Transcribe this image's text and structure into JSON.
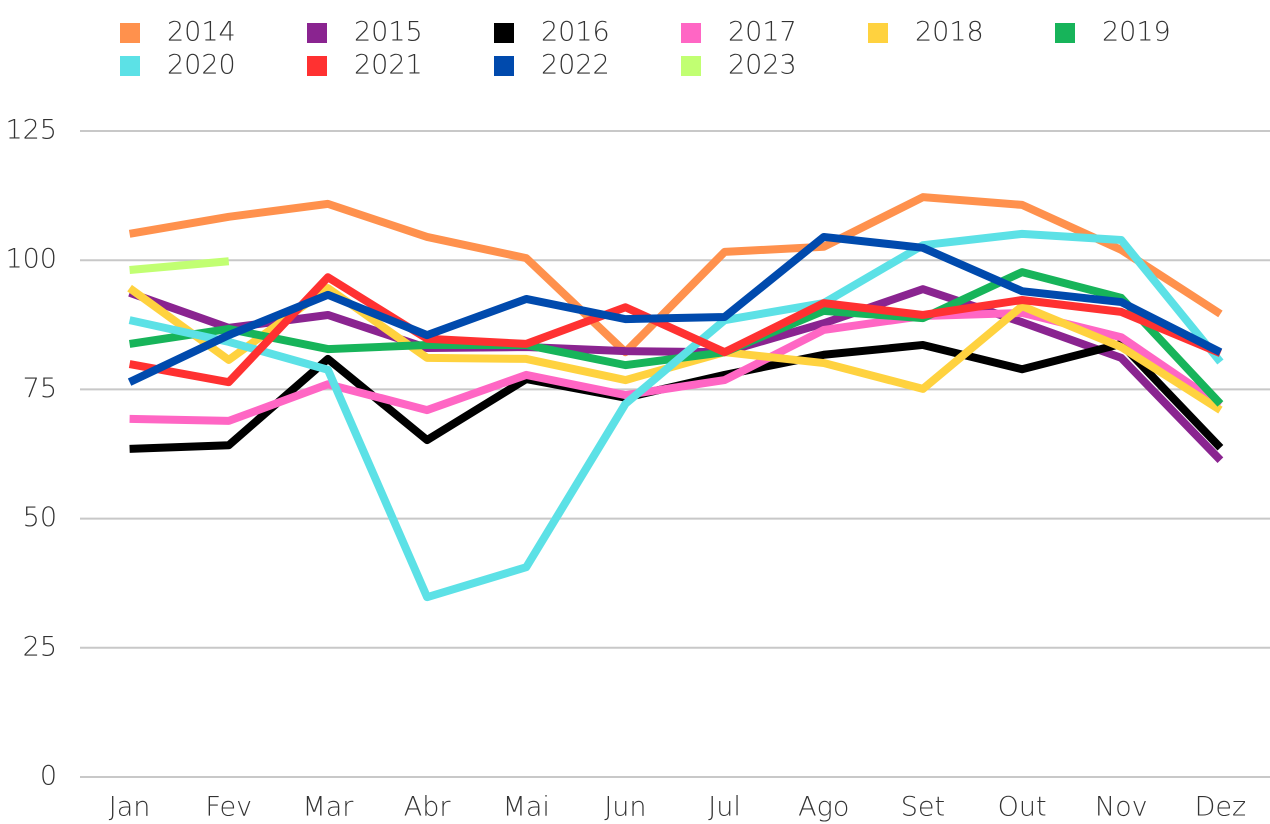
{
  "chart_data": {
    "type": "line",
    "categories": [
      "Jan",
      "Fev",
      "Mar",
      "Abr",
      "Mai",
      "Jun",
      "Jul",
      "Ago",
      "Set",
      "Out",
      "Nov",
      "Dez"
    ],
    "ylim": [
      0,
      125
    ],
    "yticks": [
      0,
      25,
      50,
      75,
      100,
      125
    ],
    "grid": true,
    "series": [
      {
        "name": "2014",
        "color": "#ff914d",
        "values": [
          105.1,
          108.4,
          110.9,
          104.5,
          100.4,
          82.2,
          101.6,
          102.6,
          112.2,
          110.7,
          102,
          89.6
        ]
      },
      {
        "name": "2015",
        "color": "#8a2490",
        "values": [
          93.7,
          86.9,
          89.4,
          83,
          83.2,
          82.4,
          82.2,
          87.8,
          94.4,
          88,
          81.1,
          61.3
        ]
      },
      {
        "name": "2016",
        "color": "#000000",
        "values": [
          63.5,
          64.2,
          80.9,
          65.2,
          77,
          73.4,
          77.8,
          81.7,
          83.6,
          78.9,
          83.8,
          63.7
        ]
      },
      {
        "name": "2017",
        "color": "#ff66c4",
        "values": [
          69.3,
          68.9,
          76,
          71,
          77.8,
          73.9,
          76.8,
          86.5,
          89.2,
          89.8,
          85.1,
          72
        ]
      },
      {
        "name": "2018",
        "color": "#ffd23f",
        "values": [
          94.6,
          80.7,
          94.6,
          81.1,
          80.9,
          76.8,
          82.2,
          80.1,
          75.1,
          91.1,
          83.2,
          71
        ]
      },
      {
        "name": "2019",
        "color": "#17b45a",
        "values": [
          83.8,
          86.7,
          82.8,
          83.6,
          83.6,
          79.7,
          82.2,
          90.2,
          88.8,
          97.7,
          92.7,
          72.2
        ]
      },
      {
        "name": "2020",
        "color": "#5ce1e6",
        "values": [
          88.4,
          84.2,
          78.8,
          34.8,
          40.6,
          72.2,
          88.4,
          91.7,
          102.9,
          105.1,
          103.9,
          80.3
        ]
      },
      {
        "name": "2021",
        "color": "#ff3131",
        "values": [
          79.9,
          76.4,
          96.7,
          84.8,
          83.8,
          90.9,
          82.2,
          91.7,
          89.4,
          92.3,
          90,
          82
        ]
      },
      {
        "name": "2022",
        "color": "#004aad",
        "values": [
          76.4,
          85.5,
          93.3,
          85.5,
          92.5,
          88.6,
          89,
          104.5,
          102.4,
          94,
          91.9,
          82.2
        ]
      },
      {
        "name": "2023",
        "color": "#c1ff72",
        "values": [
          98.1,
          99.8,
          null,
          null,
          null,
          null,
          null,
          null,
          null,
          null,
          null,
          null
        ]
      }
    ]
  }
}
